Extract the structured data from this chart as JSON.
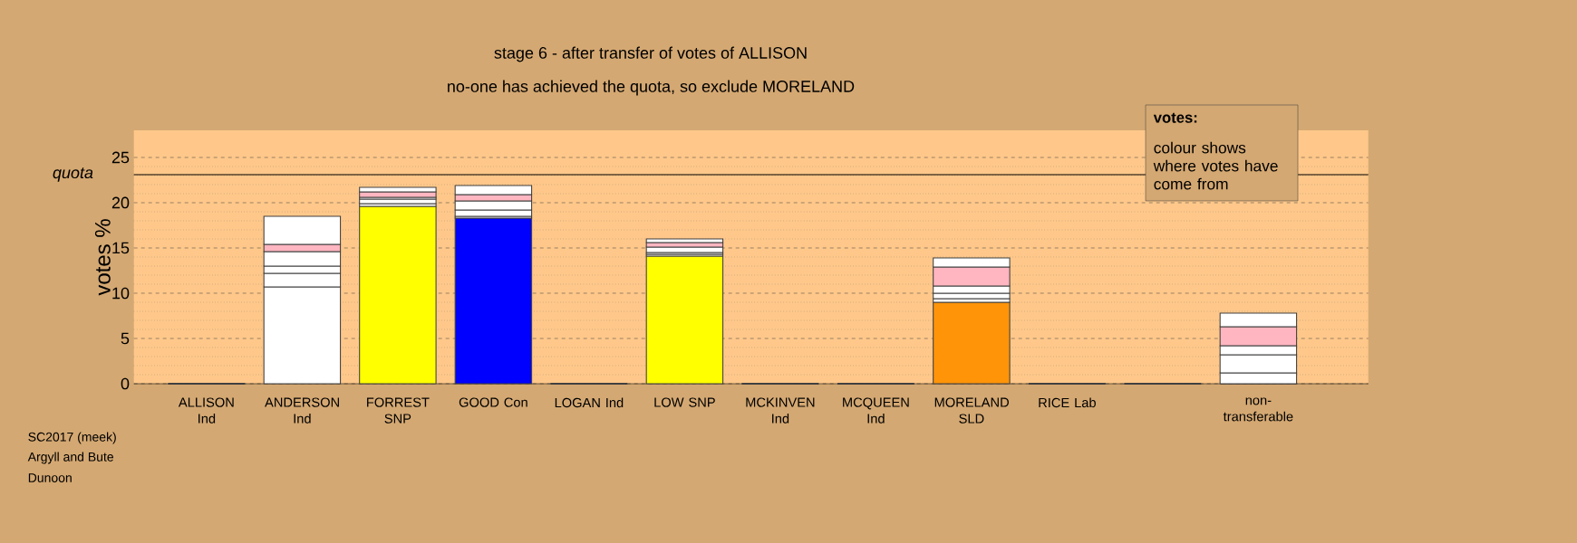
{
  "chart_data": {
    "type": "bar",
    "stacked": true,
    "title": "stage 6 - after transfer of votes of ALLISON",
    "subtitle": "no-one has achieved the quota, so exclude MORELAND",
    "ylabel": "votes %",
    "categories": [
      "ALLISON Ind",
      "ANDERSON Ind",
      "FORREST SNP",
      "GOOD Con",
      "LOGAN Ind",
      "LOW SNP",
      "MCKINVEN Ind",
      "MCQUEEN Ind",
      "MORELAND SLD",
      "RICE Lab",
      null,
      "non-transferable"
    ],
    "series": [
      {
        "colors": [
          "#ffffff",
          "#ffffff",
          "#ffff00",
          "#0000ff",
          "#ffffff",
          "#ffff00",
          "#ffffff",
          "#ffffff",
          "#ff9408",
          "#ff0000",
          "#ffffff",
          "#ffffff"
        ],
        "values": [
          0,
          10.7,
          19.6,
          18.3,
          0,
          14.1,
          0,
          0,
          9.0,
          0,
          0,
          0
        ]
      },
      {
        "color": "#ffffff",
        "values": [
          0,
          1.5,
          0.3,
          0.2,
          0,
          0.2,
          0,
          0,
          0.4,
          0,
          0,
          1.2
        ]
      },
      {
        "color": "#ffffff",
        "values": [
          0,
          0.8,
          0.5,
          0.7,
          0,
          0.2,
          0,
          0,
          0.6,
          0,
          0,
          2.0
        ]
      },
      {
        "color": "#ffffff",
        "values": [
          0,
          1.6,
          0.2,
          1.0,
          0,
          0.6,
          0,
          0,
          0.8,
          0,
          0,
          1.0
        ]
      },
      {
        "color": "#ffb6c1",
        "values": [
          0,
          0.8,
          0.6,
          0.7,
          0,
          0.5,
          0,
          0,
          2.1,
          0,
          0,
          2.1
        ]
      },
      {
        "color": "#ffffff",
        "values": [
          0,
          3.1,
          0.5,
          1.0,
          0,
          0.4,
          0,
          0,
          1.0,
          0,
          0,
          1.5
        ]
      }
    ],
    "ylim": [
      0,
      28
    ],
    "yticks": [
      0,
      5,
      10,
      15,
      20,
      25
    ],
    "grid": "y",
    "ref_lines": [
      {
        "axis": "y",
        "value": 23.1,
        "label": "quota",
        "color": "#000000"
      }
    ],
    "annotations": [
      "votes:",
      "colour shows where votes have come from",
      "SC2017 (meek)",
      "Argyll and Bute",
      "Dunoon"
    ]
  }
}
